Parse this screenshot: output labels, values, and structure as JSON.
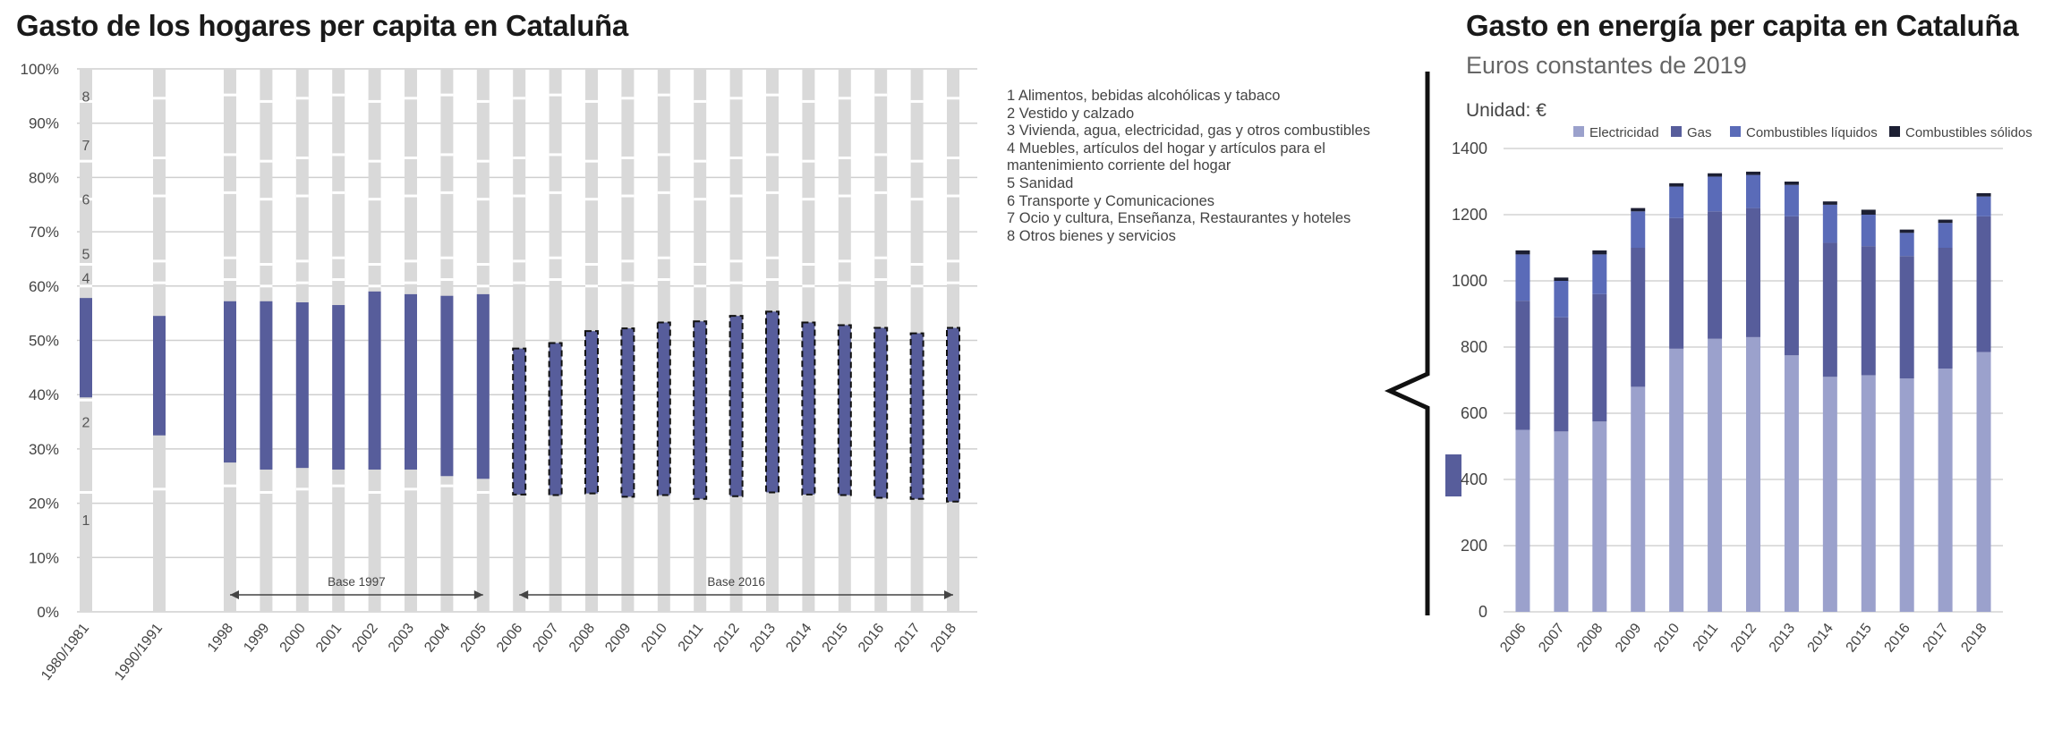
{
  "titles": {
    "left": "Gasto de los hogares per capita en Cataluña",
    "right": "Gasto en energía per capita en Cataluña",
    "right_subtitle": "Euros constantes de 2019",
    "unit_label": "Unidad: €"
  },
  "legend_left": [
    "1 Alimentos, bebidas alcohólicas y tabaco",
    "2 Vestido y calzado",
    "3 Vivienda, agua, electricidad, gas y otros combustibles",
    "4 Muebles, artículos del hogar y artículos para el",
    "mantenimiento corriente del hogar",
    "5 Sanidad",
    "6 Transporte y Comunicaciones",
    "7 Ocio y cultura, Enseñanza, Restaurantes y hoteles",
    "8 Otros bienes y servicios"
  ],
  "chart_data": [
    {
      "type": "bar",
      "title": "Gasto de los hogares per capita en Cataluña",
      "categories": [
        "1980/1981",
        "1990/1991",
        "1998",
        "1999",
        "2000",
        "2001",
        "2002",
        "2003",
        "2004",
        "2005",
        "2006",
        "2007",
        "2008",
        "2009",
        "2010",
        "2011",
        "2012",
        "2013",
        "2014",
        "2015",
        "2016",
        "2017",
        "2018"
      ],
      "ylim": [
        0,
        100
      ],
      "yticks": [
        "0%",
        "10%",
        "20%",
        "30%",
        "40%",
        "50%",
        "60%",
        "70%",
        "80%",
        "90%",
        "100%"
      ],
      "highlight_series": {
        "name": "3",
        "lower_pct": [
          39.5,
          32.5,
          27.5,
          26.2,
          26.5,
          26.2,
          26.2,
          26.2,
          25.0,
          24.5,
          21.6,
          21.5,
          21.8,
          21.2,
          21.5,
          20.8,
          21.3,
          22.0,
          21.6,
          21.5,
          21.0,
          20.8,
          20.3
        ],
        "upper_pct": [
          57.8,
          54.5,
          57.2,
          57.2,
          57.0,
          56.5,
          59.0,
          58.5,
          58.2,
          58.5,
          48.5,
          49.5,
          51.7,
          52.2,
          53.3,
          53.5,
          54.5,
          55.3,
          53.3,
          52.8,
          52.3,
          51.3,
          52.3
        ]
      },
      "segment_labels_1980": [
        "1",
        "2",
        "4",
        "5",
        "6",
        "7",
        "8"
      ],
      "brackets": [
        {
          "label": "Base 1997",
          "from": "1998",
          "to": "2005"
        },
        {
          "label": "Base 2016",
          "from": "2006",
          "to": "2018"
        }
      ],
      "grid": true,
      "colors": {
        "gray": "#d9d9d9",
        "highlight": "#575d9b"
      }
    },
    {
      "type": "bar",
      "stacked": true,
      "title": "Gasto en energía per capita en Cataluña",
      "subtitle": "Euros constantes de 2019",
      "categories": [
        "2006",
        "2007",
        "2008",
        "2009",
        "2010",
        "2011",
        "2012",
        "2013",
        "2014",
        "2015",
        "2016",
        "2017",
        "2018"
      ],
      "ylim": [
        0,
        1400
      ],
      "yticks": [
        0,
        200,
        400,
        600,
        800,
        1000,
        1200,
        1400
      ],
      "legend_position": "top",
      "series": [
        {
          "name": "Electricidad",
          "color": "#9ba1cc",
          "values": [
            550,
            545,
            575,
            680,
            795,
            825,
            830,
            775,
            710,
            715,
            705,
            735,
            785
          ]
        },
        {
          "name": "Gas",
          "color": "#575d9b",
          "values": [
            390,
            345,
            385,
            420,
            395,
            385,
            390,
            420,
            405,
            390,
            370,
            365,
            410
          ]
        },
        {
          "name": "Combustibles líquidos",
          "color": "#5a6bb8",
          "values": [
            140,
            110,
            120,
            110,
            95,
            105,
            100,
            95,
            115,
            95,
            70,
            75,
            60
          ]
        },
        {
          "name": "Combustibles sólidos",
          "color": "#1c1f33",
          "values": [
            12,
            10,
            12,
            10,
            10,
            10,
            10,
            10,
            10,
            15,
            10,
            10,
            10
          ]
        }
      ],
      "grid": true
    }
  ]
}
